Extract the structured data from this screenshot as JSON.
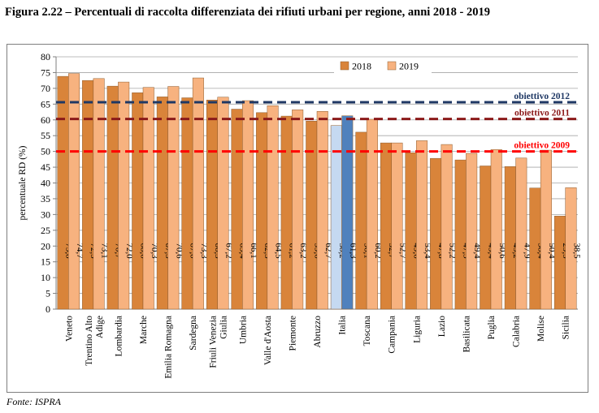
{
  "title": "Figura 2.22 – Percentuali di raccolta differenziata dei rifiuti urbani per regione, anni 2018 - 2019",
  "source": "Fonte: ISPRA",
  "chart_data": {
    "type": "bar",
    "ylabel": "percentuale RD (%)",
    "ylim": [
      0,
      80
    ],
    "yticks": [
      0,
      5,
      10,
      15,
      20,
      25,
      30,
      35,
      40,
      45,
      50,
      55,
      60,
      65,
      70,
      75,
      80
    ],
    "grid": true,
    "legend_position": "top-center",
    "categories": [
      "Veneto",
      "Trentino Alto Adige",
      "Lombardia",
      "Marche",
      "Emilia Romagna",
      "Sardegna",
      "Friuli Venezia Giulia",
      "Umbria",
      "Valle d'Aosta",
      "Piemonte",
      "Abruzzo",
      "Italia",
      "Toscana",
      "Campania",
      "Liguria",
      "Lazio",
      "Basilicata",
      "Puglia",
      "Calabria",
      "Molise",
      "Sicilia"
    ],
    "series": [
      {
        "name": "2018",
        "color": "#d9843a",
        "values": [
          73.8,
          72.5,
          70.7,
          68.6,
          67.3,
          67.0,
          66.3,
          63.4,
          62.3,
          61.2,
          59.6,
          58.2,
          56.1,
          52.7,
          49.6,
          47.8,
          47.3,
          45.4,
          45.2,
          38.4,
          29.5
        ]
      },
      {
        "name": "2019",
        "color": "#f7b27f",
        "values": [
          74.7,
          73.1,
          72.0,
          70.3,
          70.6,
          73.3,
          67.2,
          66.1,
          64.5,
          63.2,
          62.7,
          61.3,
          60.2,
          52.7,
          53.4,
          52.2,
          49.4,
          50.6,
          47.9,
          50.4,
          38.5
        ]
      }
    ],
    "highlight": {
      "category": "Italia",
      "colors": {
        "2018": "#c5d9f1",
        "2019": "#4f81bd"
      }
    },
    "data_labels": {
      "2018": [
        "73,8",
        "72,5",
        "70,7",
        "68,6",
        "67,3",
        "67,0",
        "66,3",
        "63,4",
        "62,3",
        "61,2",
        "59,6",
        "58,2",
        "56,1",
        "52,7",
        "49,6",
        "47,8",
        "47,3",
        "45,4",
        "45,2",
        "38,4",
        "29,5"
      ],
      "2019": [
        "74,7",
        "73,1",
        "72,0",
        "70,3",
        "70,6",
        "73,3",
        "67,2",
        "66,1",
        "64,5",
        "63,2",
        "62,7",
        "61,3",
        "60,2",
        "52,7",
        "53,4",
        "52,2",
        "49,4",
        "50,6",
        "47,9",
        "50,4",
        "38,5"
      ]
    },
    "reference_lines": [
      {
        "label": "obiettivo 2012",
        "value": 65.6,
        "color": "#1f3864"
      },
      {
        "label": "obiettivo 2011",
        "value": 60.3,
        "color": "#8b1a1a"
      },
      {
        "label": "obiettivo 2009",
        "value": 50,
        "color": "#ff0000"
      }
    ]
  }
}
